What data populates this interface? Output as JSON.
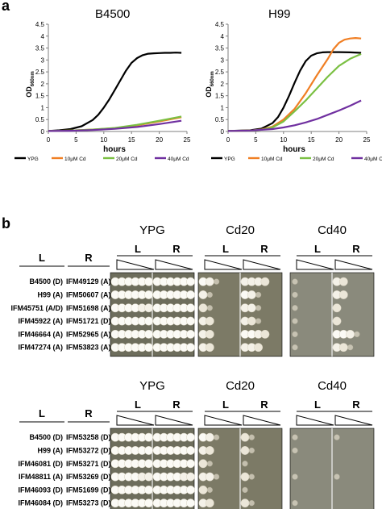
{
  "panel_a": {
    "label": "a",
    "legend_items": [
      {
        "label": "YPG",
        "color": "#000000"
      },
      {
        "label": "10μM Cd",
        "color": "#f07f24"
      },
      {
        "label": "20μM Cd",
        "color": "#7bc043"
      },
      {
        "label": "40μM Cd",
        "color": "#7030a0"
      }
    ]
  },
  "panel_b": {
    "label": "b",
    "blocks": [
      {
        "col_headers": {
          "L": "L",
          "R": "R"
        },
        "conditions": [
          "YPG",
          "Cd20",
          "Cd40"
        ],
        "lr": [
          "L",
          "R"
        ],
        "rows": [
          {
            "left": "B4500 (D)",
            "right": "IFM49129 (A)"
          },
          {
            "left": "H99 (A)",
            "right": "IFM50607 (A)"
          },
          {
            "left": "IFM45751 (A/D)",
            "right": "IFM51698 (A)"
          },
          {
            "left": "IFM45922 (A)",
            "right": "IFM51721 (D)"
          },
          {
            "left": "IFM46664 (A)",
            "right": "IFM52965 (A)"
          },
          {
            "left": "IFM47274 (A)",
            "right": "IFM53823 (A)"
          }
        ],
        "growth": [
          [
            [
              4,
              4,
              4,
              4,
              4,
              4
            ],
            [
              4,
              4,
              4,
              4,
              4,
              4
            ],
            [
              4,
              3,
              1,
              0,
              0,
              0
            ],
            [
              3,
              3,
              3,
              2,
              0,
              0
            ],
            [
              1,
              0,
              0,
              0,
              0,
              0
            ],
            [
              3,
              2,
              0,
              0,
              0,
              0
            ]
          ],
          [
            [
              4,
              4,
              4,
              4,
              4,
              4
            ],
            [
              4,
              4,
              4,
              4,
              4,
              4
            ],
            [
              3,
              1,
              0,
              0,
              0,
              0
            ],
            [
              4,
              3,
              1,
              0,
              0,
              0
            ],
            [
              1,
              0,
              0,
              0,
              0,
              0
            ],
            [
              3,
              2,
              0,
              0,
              0,
              0
            ]
          ],
          [
            [
              4,
              4,
              4,
              4,
              3,
              3
            ],
            [
              4,
              4,
              4,
              4,
              4,
              4
            ],
            [
              2,
              1,
              0,
              0,
              0,
              0
            ],
            [
              3,
              3,
              1,
              0,
              0,
              0
            ],
            [
              1,
              0,
              0,
              0,
              0,
              0
            ],
            [
              2,
              0,
              0,
              0,
              0,
              0
            ]
          ],
          [
            [
              4,
              4,
              4,
              4,
              4,
              4
            ],
            [
              4,
              4,
              4,
              4,
              4,
              4
            ],
            [
              3,
              2,
              0,
              0,
              0,
              0
            ],
            [
              3,
              2,
              1,
              0,
              0,
              0
            ],
            [
              1,
              0,
              0,
              0,
              0,
              0
            ],
            [
              2,
              0,
              0,
              0,
              0,
              0
            ]
          ],
          [
            [
              4,
              4,
              4,
              4,
              4,
              4
            ],
            [
              4,
              4,
              4,
              4,
              4,
              4
            ],
            [
              3,
              2,
              0,
              0,
              0,
              0
            ],
            [
              4,
              4,
              3,
              2,
              0,
              0
            ],
            [
              1,
              0,
              0,
              0,
              0,
              0
            ],
            [
              4,
              4,
              3,
              1,
              0,
              0
            ]
          ],
          [
            [
              4,
              4,
              4,
              4,
              4,
              4
            ],
            [
              4,
              4,
              4,
              4,
              4,
              4
            ],
            [
              3,
              2,
              0,
              0,
              0,
              0
            ],
            [
              3,
              3,
              2,
              0,
              0,
              0
            ],
            [
              1,
              0,
              0,
              0,
              0,
              0
            ],
            [
              3,
              2,
              1,
              0,
              0,
              0
            ]
          ]
        ]
      },
      {
        "col_headers": {
          "L": "L",
          "R": "R"
        },
        "conditions": [
          "YPG",
          "Cd20",
          "Cd40"
        ],
        "lr": [
          "L",
          "R"
        ],
        "rows": [
          {
            "left": "B4500 (D)",
            "right": "IFM53258 (D)"
          },
          {
            "left": "H99 (A)",
            "right": "IFM53272 (D)"
          },
          {
            "left": "IFM46081 (D)",
            "right": "IFM53271 (D)"
          },
          {
            "left": "IFM48811 (A)",
            "right": "IFM53269 (D)"
          },
          {
            "left": "IFM46093 (D)",
            "right": "IFM51699 (D)"
          },
          {
            "left": "IFM46084 (D)",
            "right": "IFM53273 (D)"
          }
        ],
        "growth": [
          [
            [
              4,
              4,
              4,
              4,
              4,
              4
            ],
            [
              4,
              4,
              4,
              4,
              4,
              4
            ],
            [
              4,
              3,
              1,
              0,
              0,
              0
            ],
            [
              2,
              1,
              0,
              0,
              0,
              0
            ],
            [
              1,
              0,
              0,
              0,
              0,
              0
            ],
            [
              1,
              0,
              0,
              0,
              0,
              0
            ]
          ],
          [
            [
              4,
              4,
              4,
              4,
              4,
              4
            ],
            [
              4,
              4,
              4,
              4,
              4,
              4
            ],
            [
              3,
              2,
              0,
              0,
              0,
              0
            ],
            [
              2,
              1,
              0,
              0,
              0,
              0
            ],
            [
              1,
              0,
              0,
              0,
              0,
              0
            ],
            [
              0,
              0,
              0,
              0,
              0,
              0
            ]
          ],
          [
            [
              4,
              4,
              4,
              4,
              4,
              4
            ],
            [
              4,
              4,
              4,
              4,
              4,
              4
            ],
            [
              2,
              1,
              0,
              0,
              0,
              0
            ],
            [
              1,
              0,
              0,
              0,
              0,
              0
            ],
            [
              0,
              0,
              0,
              0,
              0,
              0
            ],
            [
              0,
              0,
              0,
              0,
              0,
              0
            ]
          ],
          [
            [
              4,
              4,
              4,
              4,
              3,
              3
            ],
            [
              4,
              4,
              4,
              4,
              3,
              3
            ],
            [
              3,
              3,
              1,
              0,
              0,
              0
            ],
            [
              2,
              1,
              0,
              0,
              0,
              0
            ],
            [
              1,
              0,
              0,
              0,
              0,
              0
            ],
            [
              1,
              0,
              0,
              0,
              0,
              0
            ]
          ],
          [
            [
              4,
              4,
              4,
              4,
              4,
              4
            ],
            [
              4,
              4,
              4,
              4,
              4,
              4
            ],
            [
              2,
              1,
              0,
              0,
              0,
              0
            ],
            [
              1,
              0,
              0,
              0,
              0,
              0
            ],
            [
              0,
              0,
              0,
              0,
              0,
              0
            ],
            [
              0,
              0,
              0,
              0,
              0,
              0
            ]
          ],
          [
            [
              4,
              4,
              4,
              4,
              4,
              4
            ],
            [
              4,
              4,
              4,
              4,
              4,
              4
            ],
            [
              3,
              2,
              0,
              0,
              0,
              0
            ],
            [
              2,
              1,
              0,
              0,
              0,
              0
            ],
            [
              1,
              0,
              0,
              0,
              0,
              0
            ],
            [
              0,
              0,
              0,
              0,
              0,
              0
            ]
          ]
        ]
      }
    ]
  },
  "chart_data": [
    {
      "type": "line",
      "title": "B4500",
      "xlabel": "hours",
      "ylabel": "OD660nm",
      "xlim": [
        0,
        25
      ],
      "ylim": [
        0,
        4.5
      ],
      "xticks": [
        0,
        5,
        10,
        15,
        20,
        25
      ],
      "yticks": [
        0,
        0.5,
        1,
        1.5,
        2,
        2.5,
        3,
        3.5,
        4,
        4.5
      ],
      "grid": false,
      "legend": "bottom",
      "series": [
        {
          "name": "YPG",
          "color": "#000000",
          "x": [
            0,
            2,
            4,
            6,
            8,
            9,
            10,
            11,
            12,
            13,
            14,
            15,
            16,
            17,
            18,
            19,
            20,
            21,
            22,
            23,
            24
          ],
          "y": [
            0.02,
            0.05,
            0.1,
            0.22,
            0.48,
            0.7,
            1.0,
            1.35,
            1.75,
            2.15,
            2.55,
            2.88,
            3.08,
            3.2,
            3.26,
            3.28,
            3.29,
            3.3,
            3.3,
            3.31,
            3.3
          ]
        },
        {
          "name": "10μM Cd",
          "color": "#f07f24",
          "x": [
            0,
            4,
            8,
            12,
            16,
            20,
            24
          ],
          "y": [
            0.02,
            0.04,
            0.08,
            0.14,
            0.26,
            0.42,
            0.6
          ]
        },
        {
          "name": "20μM Cd",
          "color": "#7bc043",
          "x": [
            0,
            4,
            8,
            12,
            16,
            20,
            24
          ],
          "y": [
            0.02,
            0.04,
            0.08,
            0.15,
            0.28,
            0.45,
            0.63
          ]
        },
        {
          "name": "40μM Cd",
          "color": "#7030a0",
          "x": [
            0,
            4,
            8,
            12,
            16,
            20,
            24
          ],
          "y": [
            0.02,
            0.03,
            0.06,
            0.11,
            0.19,
            0.31,
            0.45
          ]
        }
      ]
    },
    {
      "type": "line",
      "title": "H99",
      "xlabel": "hours",
      "ylabel": "OD660nm",
      "xlim": [
        0,
        25
      ],
      "ylim": [
        0,
        4.5
      ],
      "xticks": [
        0,
        5,
        10,
        15,
        20,
        25
      ],
      "yticks": [
        0,
        0.5,
        1,
        1.5,
        2,
        2.5,
        3,
        3.5,
        4,
        4.5
      ],
      "grid": false,
      "legend": "bottom",
      "series": [
        {
          "name": "YPG",
          "color": "#000000",
          "x": [
            0,
            4,
            6,
            8,
            9,
            10,
            11,
            12,
            13,
            14,
            15,
            16,
            17,
            18,
            20,
            22,
            24
          ],
          "y": [
            0.02,
            0.05,
            0.12,
            0.35,
            0.6,
            1.0,
            1.5,
            2.05,
            2.55,
            2.95,
            3.18,
            3.28,
            3.32,
            3.33,
            3.33,
            3.32,
            3.3
          ]
        },
        {
          "name": "10μM Cd",
          "color": "#f07f24",
          "x": [
            0,
            4,
            6,
            8,
            10,
            12,
            14,
            16,
            18,
            19,
            20,
            21,
            22,
            23,
            24
          ],
          "y": [
            0.02,
            0.04,
            0.08,
            0.2,
            0.5,
            0.95,
            1.6,
            2.35,
            3.05,
            3.45,
            3.72,
            3.85,
            3.9,
            3.92,
            3.9
          ]
        },
        {
          "name": "20μM Cd",
          "color": "#7bc043",
          "x": [
            0,
            4,
            6,
            8,
            10,
            12,
            14,
            16,
            18,
            20,
            22,
            24
          ],
          "y": [
            0.02,
            0.04,
            0.07,
            0.17,
            0.42,
            0.85,
            1.3,
            1.8,
            2.3,
            2.75,
            3.05,
            3.25
          ]
        },
        {
          "name": "40μM Cd",
          "color": "#7030a0",
          "x": [
            0,
            4,
            8,
            10,
            12,
            14,
            16,
            18,
            20,
            22,
            24
          ],
          "y": [
            0.02,
            0.04,
            0.1,
            0.17,
            0.26,
            0.38,
            0.52,
            0.7,
            0.88,
            1.08,
            1.3
          ]
        }
      ]
    }
  ]
}
